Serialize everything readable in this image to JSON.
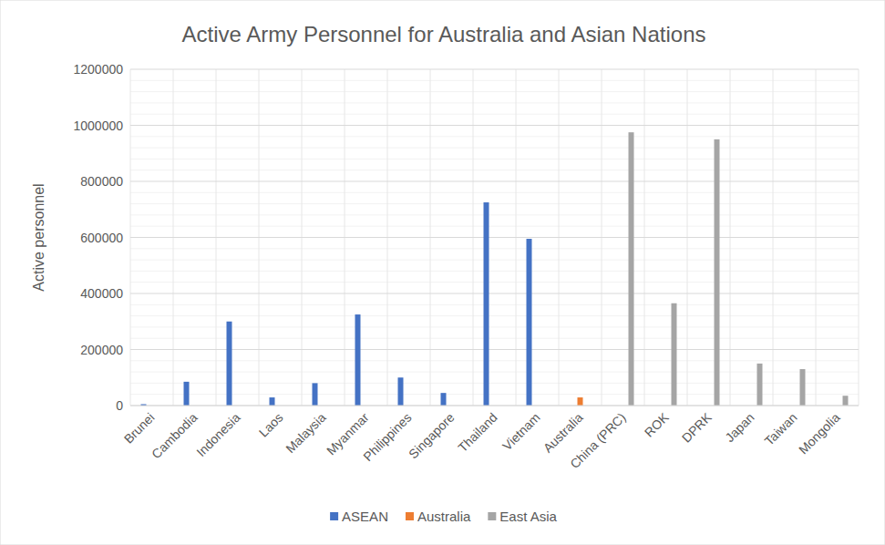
{
  "chart_data": {
    "type": "bar",
    "title": "Active Army Personnel for Australia and Asian Nations",
    "y_label": "Active personnel",
    "categories": [
      "Brunei",
      "Cambodia",
      "Indonesia",
      "Laos",
      "Malaysia",
      "Myanmar",
      "Philippines",
      "Singapore",
      "Thailand",
      "Vietnam",
      "Australia",
      "China (PRC)",
      "ROK",
      "DPRK",
      "Japan",
      "Taiwan",
      "Mongolia"
    ],
    "series": [
      {
        "name": "ASEAN",
        "color": "#4472c4",
        "values": [
          4900,
          85000,
          300000,
          29000,
          80000,
          325000,
          100000,
          45000,
          725000,
          595000,
          null,
          null,
          null,
          null,
          null,
          null,
          null
        ]
      },
      {
        "name": "Australia",
        "color": "#ed7d31",
        "values": [
          null,
          null,
          null,
          null,
          null,
          null,
          null,
          null,
          null,
          null,
          29000,
          null,
          null,
          null,
          null,
          null,
          null
        ]
      },
      {
        "name": "East Asia",
        "color": "#a5a5a5",
        "values": [
          null,
          null,
          null,
          null,
          null,
          null,
          null,
          null,
          null,
          null,
          null,
          975000,
          365000,
          950000,
          150000,
          130000,
          35000
        ]
      }
    ],
    "ylim": [
      0,
      1200000
    ],
    "yticks": [
      0,
      200000,
      400000,
      600000,
      800000,
      1000000,
      1200000
    ],
    "grid": true,
    "legend": "bottom"
  }
}
